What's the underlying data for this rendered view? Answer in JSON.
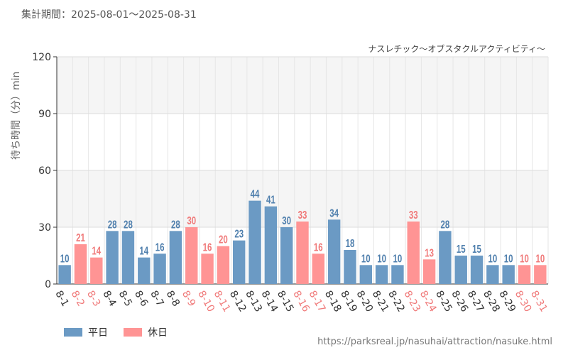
{
  "header": {
    "period_label": "集計期間：2025-08-01～2025-08-31",
    "attraction_name": "ナスレチック～オブスタクルアクティビティ～"
  },
  "colors": {
    "weekday": "#6b9ac4",
    "holiday": "#ff9494",
    "weekday_text": "#4f7fad",
    "holiday_text": "#f07a7a"
  },
  "legend": {
    "weekday_label": "平日",
    "holiday_label": "休日"
  },
  "footer": {
    "url": "https://parksreal.jp/nasuhai/attraction/nasuke.html"
  },
  "chart_data": {
    "type": "bar",
    "title": "ナスレチック～オブスタクルアクティビティ～",
    "xlabel": "",
    "ylabel": "待ち時間（分）min",
    "ylim": [
      0,
      120
    ],
    "yticks": [
      0,
      30,
      60,
      90,
      120
    ],
    "categories": [
      "8-1",
      "8-2",
      "8-3",
      "8-4",
      "8-5",
      "8-6",
      "8-7",
      "8-8",
      "8-9",
      "8-10",
      "8-11",
      "8-12",
      "8-13",
      "8-14",
      "8-15",
      "8-16",
      "8-17",
      "8-18",
      "8-19",
      "8-20",
      "8-21",
      "8-22",
      "8-23",
      "8-24",
      "8-25",
      "8-26",
      "8-27",
      "8-28",
      "8-29",
      "8-30",
      "8-31"
    ],
    "values": [
      10,
      21,
      14,
      28,
      28,
      14,
      16,
      28,
      30,
      16,
      20,
      23,
      44,
      41,
      30,
      33,
      16,
      34,
      18,
      10,
      10,
      10,
      33,
      13,
      28,
      15,
      15,
      10,
      10,
      10,
      10
    ],
    "day_type": [
      "weekday",
      "holiday",
      "holiday",
      "weekday",
      "weekday",
      "weekday",
      "weekday",
      "weekday",
      "holiday",
      "holiday",
      "holiday",
      "weekday",
      "weekday",
      "weekday",
      "weekday",
      "holiday",
      "holiday",
      "weekday",
      "weekday",
      "weekday",
      "weekday",
      "weekday",
      "holiday",
      "holiday",
      "weekday",
      "weekday",
      "weekday",
      "weekday",
      "weekday",
      "holiday",
      "holiday"
    ],
    "series": [
      {
        "name": "平日",
        "type": "weekday"
      },
      {
        "name": "休日",
        "type": "holiday"
      }
    ],
    "grid": true,
    "legend_position": "bottom-left"
  }
}
